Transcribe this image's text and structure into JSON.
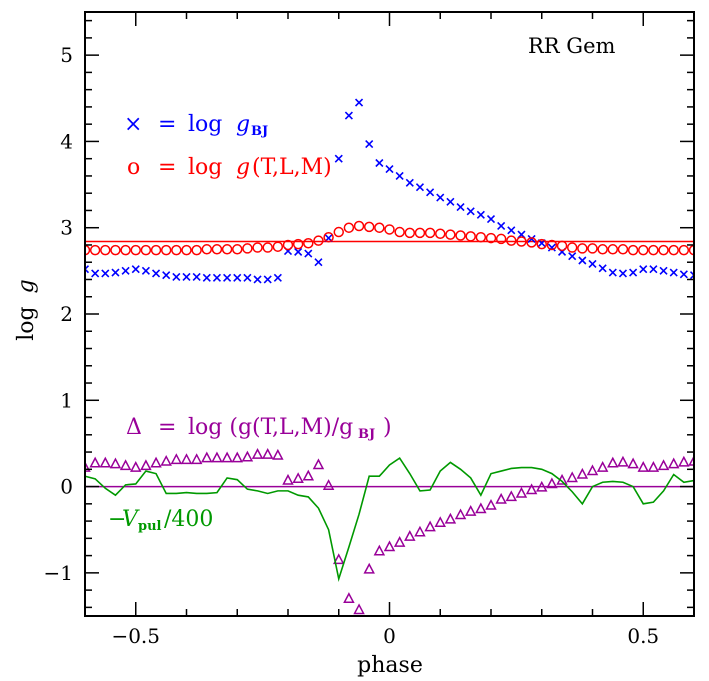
{
  "chart_data": {
    "type": "scatter",
    "title": "RR Gem",
    "xlabel": "phase",
    "ylabel_main": "log",
    "ylabel_italic": "g",
    "xlim": [
      -0.6,
      0.6
    ],
    "ylim": [
      -1.5,
      5.5
    ],
    "x_ticks": [
      -0.5,
      0,
      0.5
    ],
    "x_tick_labels": [
      "−0.5",
      "0",
      "0.5"
    ],
    "y_ticks": [
      -1,
      0,
      1,
      2,
      3,
      4,
      5
    ],
    "y_tick_labels": [
      "−1",
      "0",
      "1",
      "2",
      "3",
      "4",
      "5"
    ],
    "reference_lines": [
      {
        "y": 2.84,
        "color": "#ff0000"
      },
      {
        "y": 0.0,
        "color": "#990099"
      }
    ],
    "legend": {
      "logg_bj": {
        "symbol": "×",
        "eq": "=",
        "text": "log",
        "var": "g",
        "sub": "BJ",
        "color": "#0000ff"
      },
      "logg_tlm": {
        "symbol": "o",
        "eq": "=",
        "text": "log",
        "var": "g",
        "suffix": "(T,L,M)",
        "color": "#ff0000"
      },
      "delta": {
        "symbol": "Δ",
        "eq": "=",
        "text": "log (g(T,L,M)/g",
        "sub": "BJ",
        "close": ")",
        "color": "#990099"
      },
      "vpul": {
        "minus": "−",
        "var": "V",
        "sub": "pul",
        "suffix": "/400",
        "color": "#009900"
      }
    },
    "series": [
      {
        "name": "log g BJ",
        "marker": "x",
        "color": "#0000ff",
        "x": [
          -0.6,
          -0.58,
          -0.56,
          -0.54,
          -0.52,
          -0.5,
          -0.48,
          -0.46,
          -0.44,
          -0.42,
          -0.4,
          -0.38,
          -0.36,
          -0.34,
          -0.32,
          -0.3,
          -0.28,
          -0.26,
          -0.24,
          -0.22,
          -0.2,
          -0.18,
          -0.16,
          -0.14,
          -0.12,
          -0.1,
          -0.08,
          -0.06,
          -0.04,
          -0.02,
          0.0,
          0.02,
          0.04,
          0.06,
          0.08,
          0.1,
          0.12,
          0.14,
          0.16,
          0.18,
          0.2,
          0.22,
          0.24,
          0.26,
          0.28,
          0.3,
          0.32,
          0.34,
          0.36,
          0.38,
          0.4,
          0.42,
          0.44,
          0.46,
          0.48,
          0.5,
          0.52,
          0.54,
          0.56,
          0.58,
          0.6
        ],
        "y": [
          2.52,
          2.47,
          2.47,
          2.48,
          2.5,
          2.52,
          2.5,
          2.47,
          2.45,
          2.43,
          2.43,
          2.43,
          2.42,
          2.42,
          2.42,
          2.42,
          2.42,
          2.4,
          2.4,
          2.42,
          2.73,
          2.72,
          2.7,
          2.6,
          2.88,
          3.8,
          4.3,
          4.45,
          3.97,
          3.75,
          3.68,
          3.6,
          3.52,
          3.47,
          3.41,
          3.35,
          3.3,
          3.24,
          3.19,
          3.15,
          3.1,
          3.02,
          2.97,
          2.92,
          2.87,
          2.82,
          2.77,
          2.72,
          2.67,
          2.62,
          2.58,
          2.53,
          2.48,
          2.47,
          2.48,
          2.52,
          2.52,
          2.5,
          2.48,
          2.46,
          2.45
        ]
      },
      {
        "name": "log g(T,L,M)",
        "marker": "circle",
        "color": "#ff0000",
        "x": [
          -0.6,
          -0.58,
          -0.56,
          -0.54,
          -0.52,
          -0.5,
          -0.48,
          -0.46,
          -0.44,
          -0.42,
          -0.4,
          -0.38,
          -0.36,
          -0.34,
          -0.32,
          -0.3,
          -0.28,
          -0.26,
          -0.24,
          -0.22,
          -0.2,
          -0.18,
          -0.16,
          -0.14,
          -0.12,
          -0.1,
          -0.08,
          -0.06,
          -0.04,
          -0.02,
          0.0,
          0.02,
          0.04,
          0.06,
          0.08,
          0.1,
          0.12,
          0.14,
          0.16,
          0.18,
          0.2,
          0.22,
          0.24,
          0.26,
          0.28,
          0.3,
          0.32,
          0.34,
          0.36,
          0.38,
          0.4,
          0.42,
          0.44,
          0.46,
          0.48,
          0.5,
          0.52,
          0.54,
          0.56,
          0.58,
          0.6
        ],
        "y": [
          2.74,
          2.74,
          2.74,
          2.74,
          2.74,
          2.74,
          2.74,
          2.74,
          2.74,
          2.74,
          2.74,
          2.74,
          2.75,
          2.75,
          2.75,
          2.75,
          2.76,
          2.77,
          2.77,
          2.78,
          2.8,
          2.81,
          2.82,
          2.85,
          2.89,
          2.95,
          3.0,
          3.02,
          3.01,
          3.0,
          2.98,
          2.95,
          2.94,
          2.94,
          2.94,
          2.93,
          2.92,
          2.91,
          2.9,
          2.89,
          2.88,
          2.87,
          2.85,
          2.84,
          2.83,
          2.81,
          2.8,
          2.79,
          2.77,
          2.76,
          2.76,
          2.75,
          2.75,
          2.75,
          2.74,
          2.74,
          2.74,
          2.74,
          2.74,
          2.74,
          2.74
        ]
      },
      {
        "name": "Δ",
        "marker": "triangle",
        "color": "#990099",
        "x": [
          -0.6,
          -0.58,
          -0.56,
          -0.54,
          -0.52,
          -0.5,
          -0.48,
          -0.46,
          -0.44,
          -0.42,
          -0.4,
          -0.38,
          -0.36,
          -0.34,
          -0.32,
          -0.3,
          -0.28,
          -0.26,
          -0.24,
          -0.22,
          -0.2,
          -0.18,
          -0.16,
          -0.14,
          -0.12,
          -0.1,
          -0.08,
          -0.06,
          -0.04,
          -0.02,
          0.0,
          0.02,
          0.04,
          0.06,
          0.08,
          0.1,
          0.12,
          0.14,
          0.16,
          0.18,
          0.2,
          0.22,
          0.24,
          0.26,
          0.28,
          0.3,
          0.32,
          0.34,
          0.36,
          0.38,
          0.4,
          0.42,
          0.44,
          0.46,
          0.48,
          0.5,
          0.52,
          0.54,
          0.56,
          0.58,
          0.6
        ],
        "y": [
          0.22,
          0.27,
          0.27,
          0.26,
          0.24,
          0.22,
          0.24,
          0.27,
          0.29,
          0.31,
          0.31,
          0.31,
          0.33,
          0.33,
          0.33,
          0.33,
          0.34,
          0.37,
          0.37,
          0.36,
          0.07,
          0.09,
          0.12,
          0.25,
          0.01,
          -0.85,
          -1.3,
          -1.43,
          -0.96,
          -0.75,
          -0.7,
          -0.65,
          -0.58,
          -0.53,
          -0.47,
          -0.42,
          -0.38,
          -0.33,
          -0.29,
          -0.26,
          -0.22,
          -0.15,
          -0.12,
          -0.08,
          -0.04,
          -0.01,
          0.03,
          0.07,
          0.1,
          0.14,
          0.18,
          0.22,
          0.27,
          0.28,
          0.26,
          0.22,
          0.22,
          0.24,
          0.26,
          0.28,
          0.29
        ]
      },
      {
        "name": "Vpul/400",
        "marker": "line",
        "color": "#009900",
        "x": [
          -0.6,
          -0.58,
          -0.56,
          -0.54,
          -0.52,
          -0.5,
          -0.48,
          -0.46,
          -0.44,
          -0.42,
          -0.4,
          -0.38,
          -0.36,
          -0.34,
          -0.32,
          -0.3,
          -0.28,
          -0.26,
          -0.24,
          -0.22,
          -0.2,
          -0.18,
          -0.16,
          -0.14,
          -0.12,
          -0.1,
          -0.08,
          -0.06,
          -0.04,
          -0.02,
          0.0,
          0.02,
          0.04,
          0.06,
          0.08,
          0.1,
          0.12,
          0.14,
          0.16,
          0.18,
          0.2,
          0.22,
          0.24,
          0.26,
          0.28,
          0.3,
          0.32,
          0.34,
          0.36,
          0.38,
          0.4,
          0.42,
          0.44,
          0.46,
          0.48,
          0.5,
          0.52,
          0.54,
          0.56,
          0.58,
          0.6
        ],
        "y": [
          0.12,
          0.09,
          -0.02,
          -0.1,
          0.02,
          0.03,
          0.18,
          0.15,
          -0.08,
          -0.08,
          -0.07,
          -0.08,
          -0.08,
          -0.07,
          0.1,
          0.08,
          -0.03,
          -0.05,
          -0.08,
          -0.05,
          -0.05,
          -0.1,
          -0.12,
          -0.25,
          -0.5,
          -1.07,
          -0.7,
          -0.32,
          0.12,
          0.12,
          0.25,
          0.33,
          0.15,
          -0.05,
          -0.04,
          0.18,
          0.28,
          0.2,
          0.1,
          -0.1,
          0.15,
          0.18,
          0.21,
          0.22,
          0.22,
          0.2,
          0.15,
          0.06,
          -0.06,
          -0.2,
          0.0,
          0.05,
          0.06,
          0.05,
          0.0,
          -0.2,
          -0.18,
          -0.05,
          0.14,
          0.05,
          0.07
        ]
      }
    ]
  }
}
